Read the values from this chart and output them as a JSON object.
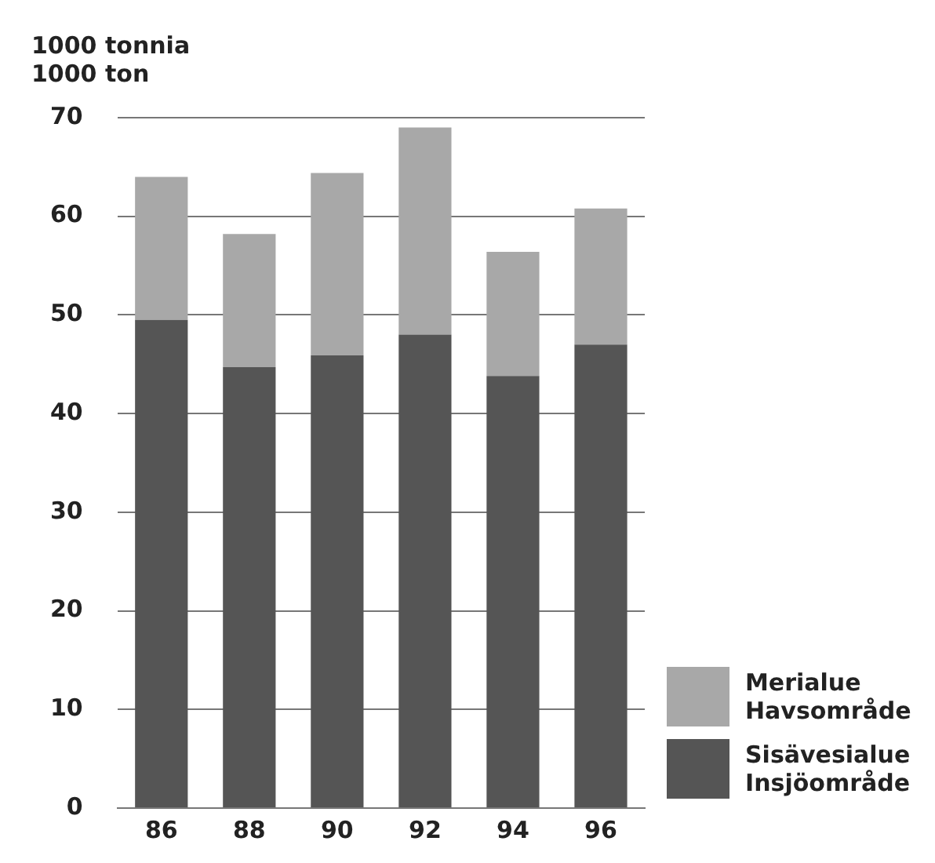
{
  "chart_data": {
    "type": "bar",
    "ylabel": "1000 tonnia\n1000 ton",
    "categories": [
      "86",
      "88",
      "90",
      "92",
      "94",
      "96"
    ],
    "series": [
      {
        "name": "Sisävesialue Insjöområde",
        "color": "#555555",
        "values": [
          49.5,
          44.7,
          45.9,
          48.0,
          43.8,
          47.0
        ]
      },
      {
        "name": "Merialue Havsområde",
        "color": "#a8a8a8",
        "values": [
          14.5,
          13.5,
          18.5,
          21.0,
          12.6,
          13.8
        ]
      }
    ],
    "stacked": true,
    "ylim": [
      0,
      70
    ],
    "yticks": [
      0,
      10,
      20,
      30,
      40,
      50,
      60,
      70
    ],
    "grid": "y",
    "legend": "bottom right"
  }
}
